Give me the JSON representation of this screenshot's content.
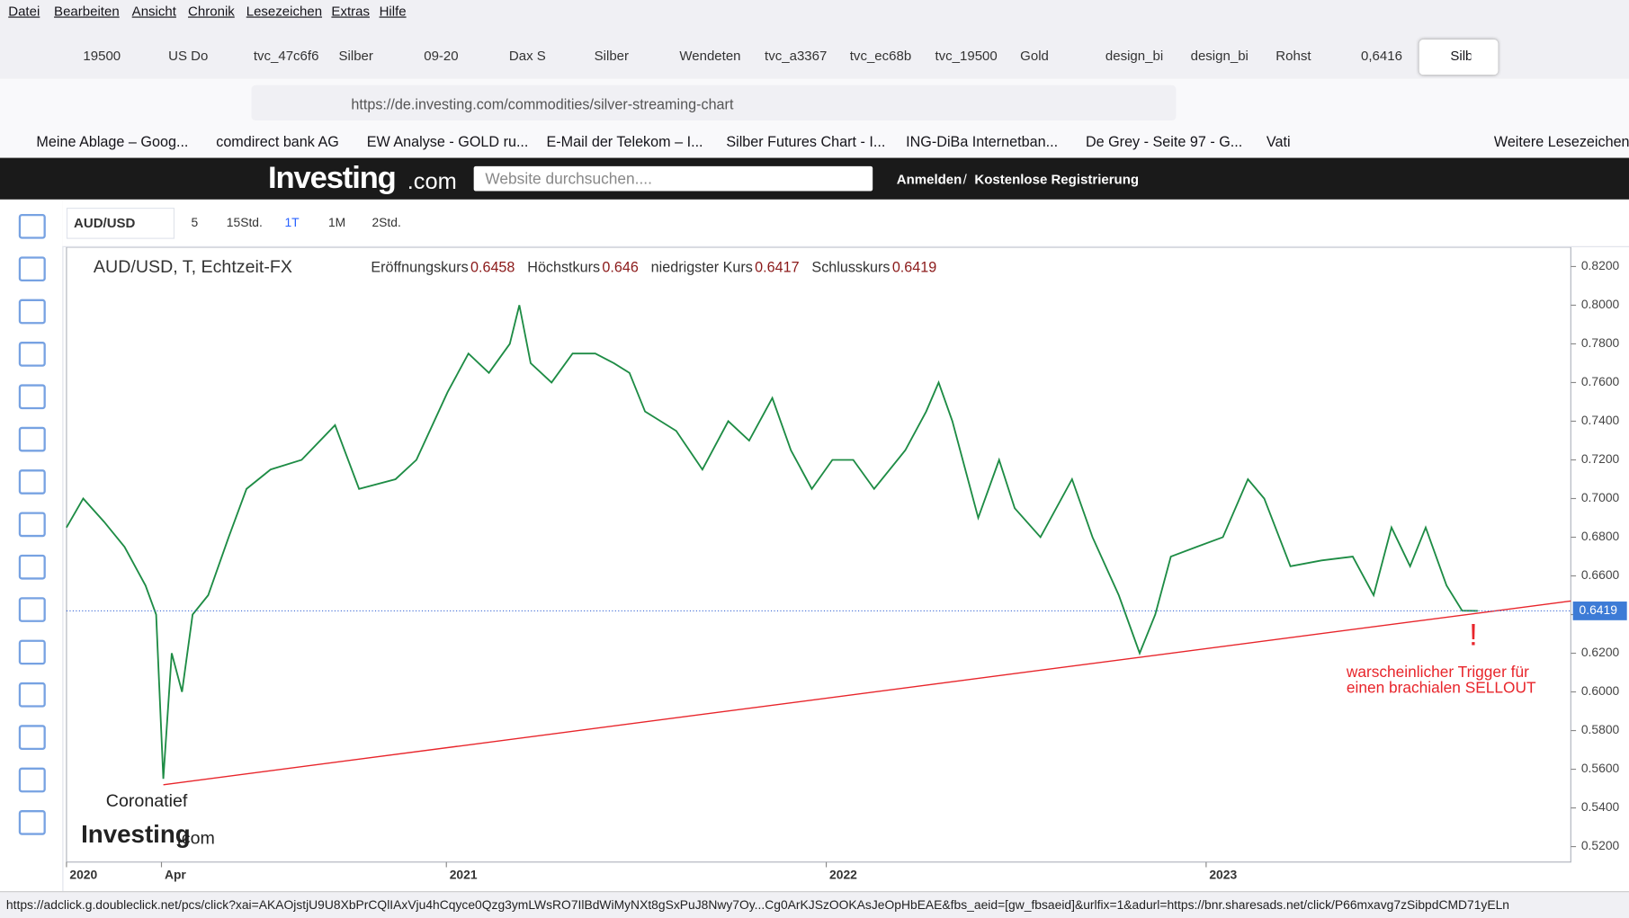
{
  "menu": [
    "Datei",
    "Bearbeiten",
    "Ansicht",
    "Chronik",
    "Lesezeichen",
    "Extras",
    "Hilfe"
  ],
  "tabs": [
    "19500",
    "US Do",
    "tvc_47c6f6",
    "Silber",
    "09-20",
    "Dax S",
    "Silber",
    "Wendeten",
    "tvc_a3367",
    "tvc_ec68b",
    "tvc_19500",
    "Gold",
    "design_bi",
    "design_bi",
    "Rohst",
    "0,6416",
    "Silb"
  ],
  "url": "https://de.investing.com/commodities/silver-streaming-chart",
  "bookmarks": [
    "Meine Ablage – Goog...",
    "comdirect bank AG",
    "EW Analyse - GOLD ru...",
    "E-Mail der Telekom – I...",
    "Silber Futures Chart - I...",
    "ING-DiBa Internetban...",
    "De Grey - Seite 97 - G...",
    "Vati"
  ],
  "more_bookmarks": "Weitere Lesezeichen",
  "site": {
    "logo": "Investing",
    "logo_suffix": ".com",
    "search_placeholder": "Website durchsuchen....",
    "login": "Anmelden",
    "separator": "/",
    "register": "Kostenlose Registrierung"
  },
  "toolbar": {
    "symbol": "AUD/USD",
    "intervals": [
      "5",
      "15Std.",
      "1T",
      "1M",
      "2Std."
    ]
  },
  "chart_data": {
    "type": "line",
    "title": "AUD/USD, T, Echtzeit-FX",
    "ohlc": [
      {
        "label": "Eröffnungskurs",
        "value": 0.6458
      },
      {
        "label": "Höchstkurs",
        "value": 0.646
      },
      {
        "label": "niedrigster Kurs",
        "value": 0.6417
      },
      {
        "label": "Schlusskurs",
        "value": 0.6419
      }
    ],
    "x": [
      2020.0,
      2020.044,
      2020.099,
      2020.153,
      2020.208,
      2020.236,
      2020.255,
      2020.277,
      2020.304,
      2020.332,
      2020.373,
      2020.427,
      2020.474,
      2020.537,
      2020.619,
      2020.707,
      2020.77,
      2020.866,
      2020.921,
      2021.003,
      2021.058,
      2021.112,
      2021.167,
      2021.192,
      2021.222,
      2021.277,
      2021.332,
      2021.392,
      2021.441,
      2021.482,
      2021.523,
      2021.605,
      2021.674,
      2021.742,
      2021.797,
      2021.858,
      2021.907,
      2021.962,
      2022.016,
      2022.071,
      2022.126,
      2022.208,
      2022.263,
      2022.296,
      2022.332,
      2022.4,
      2022.455,
      2022.496,
      2022.564,
      2022.647,
      2022.701,
      2022.77,
      2022.825,
      2022.866,
      2022.907,
      2022.975,
      2023.044,
      2023.11,
      2023.153,
      2023.222,
      2023.304,
      2023.386,
      2023.441,
      2023.488,
      2023.537,
      2023.578,
      2023.633,
      2023.674,
      2023.715
    ],
    "values": [
      0.685,
      0.7,
      0.688,
      0.675,
      0.655,
      0.64,
      0.555,
      0.62,
      0.6,
      0.64,
      0.65,
      0.68,
      0.705,
      0.715,
      0.72,
      0.738,
      0.705,
      0.71,
      0.72,
      0.755,
      0.775,
      0.765,
      0.78,
      0.8,
      0.77,
      0.76,
      0.775,
      0.775,
      0.77,
      0.765,
      0.745,
      0.735,
      0.715,
      0.74,
      0.73,
      0.752,
      0.725,
      0.705,
      0.72,
      0.72,
      0.705,
      0.725,
      0.745,
      0.76,
      0.74,
      0.69,
      0.72,
      0.695,
      0.68,
      0.71,
      0.68,
      0.65,
      0.62,
      0.64,
      0.67,
      0.675,
      0.68,
      0.71,
      0.7,
      0.665,
      0.668,
      0.67,
      0.65,
      0.685,
      0.665,
      0.685,
      0.655,
      0.642,
      0.6419
    ],
    "color": "#1e8c45",
    "trendline": {
      "x": [
        2020.255,
        2023.96
      ],
      "values": [
        0.552,
        0.647
      ],
      "color": "#e8252b"
    },
    "last_price": 0.6419,
    "xlim": [
      2020,
      2023.96
    ],
    "xticks": [
      2020,
      {
        "value": 2020.25,
        "label": "Apr"
      },
      2021,
      2022,
      2023
    ],
    "ylim": [
      0.512,
      0.83
    ],
    "yticks": [
      {
        "value": 0.52,
        "label": "0.5200"
      },
      {
        "value": 0.54,
        "label": "0.5400"
      },
      {
        "value": 0.56,
        "label": "0.5600"
      },
      {
        "value": 0.58,
        "label": "0.5800"
      },
      {
        "value": 0.6,
        "label": "0.6000"
      },
      {
        "value": 0.62,
        "label": "0.6200"
      },
      {
        "value": 0.64,
        "label": "0.6400"
      },
      {
        "value": 0.66,
        "label": "0.6600"
      },
      {
        "value": 0.68,
        "label": "0.6800"
      },
      {
        "value": 0.7,
        "label": "0.7000"
      },
      {
        "value": 0.72,
        "label": "0.7200"
      },
      {
        "value": 0.74,
        "label": "0.7400"
      },
      {
        "value": 0.76,
        "label": "0.7600"
      },
      {
        "value": 0.78,
        "label": "0.7800"
      },
      {
        "value": 0.8,
        "label": "0.8000"
      },
      {
        "value": 0.82,
        "label": "0.8200"
      }
    ],
    "annotations": [
      "Coronatief",
      "warscheinlicher Trigger für",
      "einen brachialen  SELLOUT",
      "!"
    ]
  },
  "status": "https://adclick.g.doubleclick.net/pcs/click?xai=AKAOjstjU9U8XbPrCQlIAxVju4hCqyce0Qzg3ymLWsRO7IlBdWiMyNXt8gSxPuJ8Nwy7Oy...Cg0ArKJSzOOKAsJeOpHbEAE&fbs_aeid=[gw_fbsaeid]&urlfix=1&adurl=https://bnr.sharesads.net/click/P66mxavg7zSibpdCMD71yELn"
}
